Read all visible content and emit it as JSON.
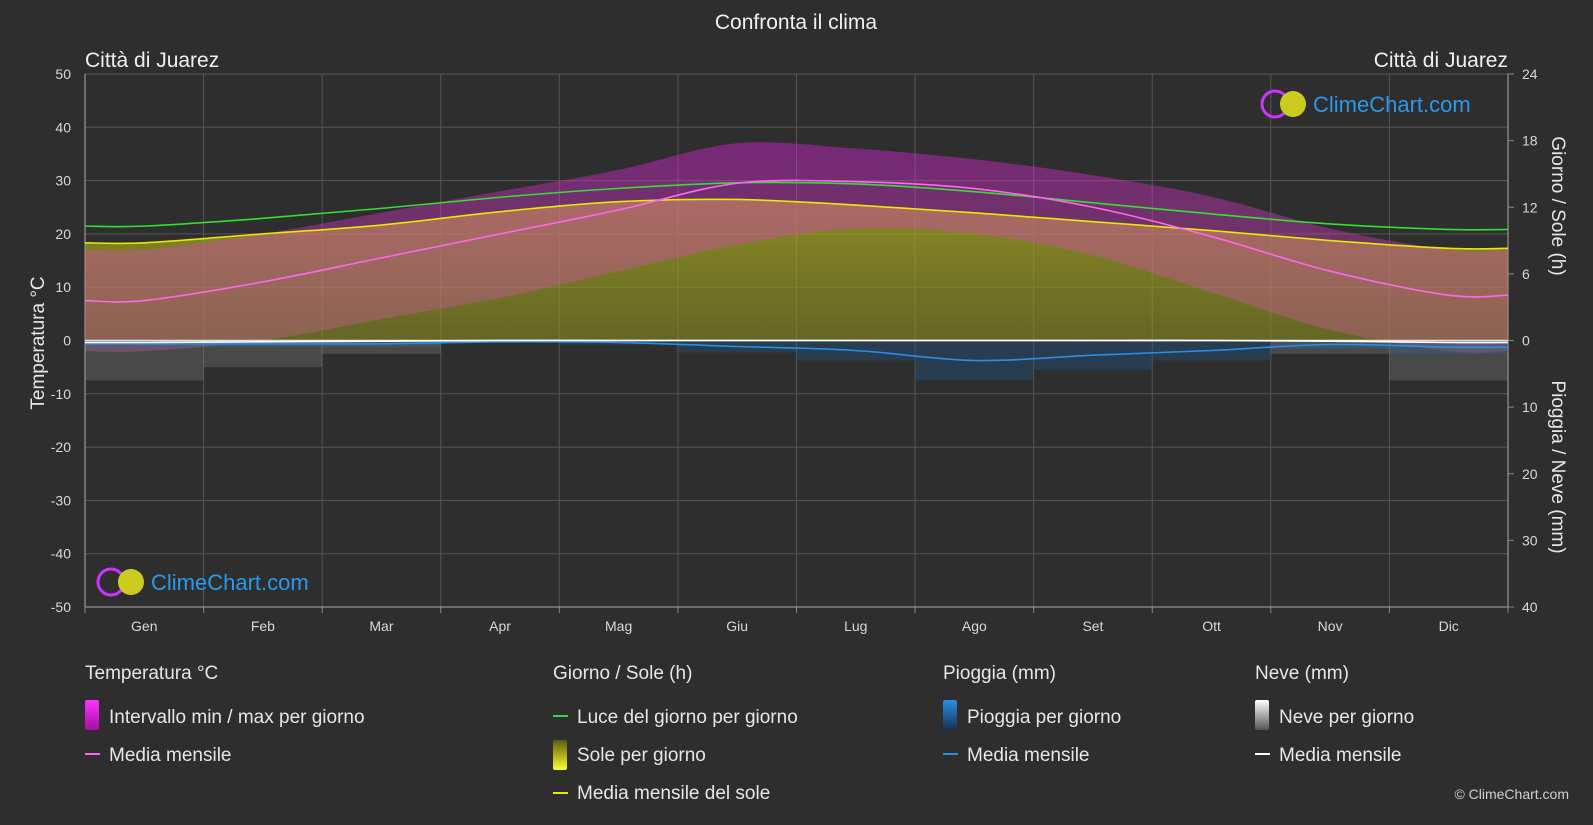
{
  "chart_data": {
    "type": "area",
    "title": "Confronta il clima",
    "location_left": "Città di Juarez",
    "location_right": "Città di Juarez",
    "ylabel_left": "Temperatura °C",
    "ylabel_right_top": "Giorno / Sole (h)",
    "ylabel_right_bottom": "Pioggia / Neve (mm)",
    "ylim_left": [
      -50,
      50
    ],
    "ylim_sun_hours": [
      0,
      24
    ],
    "ylim_precip_mm": [
      0,
      40
    ],
    "left_ticks": [
      "50",
      "40",
      "30",
      "20",
      "10",
      "0",
      "-10",
      "-20",
      "-30",
      "-40",
      "-50"
    ],
    "right_ticks_hours": [
      "24",
      "18",
      "12",
      "6",
      "0"
    ],
    "right_ticks_mm": [
      "10",
      "20",
      "30",
      "40"
    ],
    "grid": true,
    "categories": [
      "Gen",
      "Feb",
      "Mar",
      "Apr",
      "Mag",
      "Giu",
      "Lug",
      "Ago",
      "Set",
      "Ott",
      "Nov",
      "Dic"
    ],
    "series": [
      {
        "name": "Luce del giorno per giorno",
        "unit": "h",
        "color": "#33dd33",
        "values": [
          10.3,
          11.0,
          11.9,
          12.9,
          13.7,
          14.2,
          14.1,
          13.4,
          12.4,
          11.4,
          10.5,
          10.0
        ]
      },
      {
        "name": "Media mensile del sole",
        "unit": "h",
        "color": "#e8e800",
        "values": [
          8.8,
          9.6,
          10.4,
          11.6,
          12.5,
          12.7,
          12.2,
          11.5,
          10.7,
          9.9,
          9.0,
          8.3
        ]
      },
      {
        "name": "Media mensile",
        "group": "Temperatura °C",
        "unit": "°C",
        "color": "#ff66ee",
        "values": [
          7.5,
          11.0,
          15.5,
          20.0,
          24.5,
          29.5,
          29.8,
          28.5,
          25.0,
          19.5,
          13.0,
          8.5
        ]
      },
      {
        "name": "Intervallo min / max per giorno",
        "unit": "°C",
        "color": "#dd22dd",
        "min": [
          -2,
          0,
          4,
          8,
          13,
          18,
          21,
          20,
          16,
          9,
          2,
          -2
        ],
        "max": [
          17,
          20,
          24,
          28,
          32,
          37,
          36,
          34,
          31,
          27,
          21,
          17
        ]
      },
      {
        "name": "Sole per giorno",
        "unit": "h",
        "color": "#c8c820",
        "values": [
          8.8,
          9.6,
          10.4,
          11.6,
          12.5,
          12.7,
          12.2,
          11.5,
          10.7,
          9.9,
          9.0,
          8.3
        ]
      },
      {
        "name": "Media mensile",
        "group": "Pioggia (mm)",
        "unit": "mm",
        "color": "#2a8ee8",
        "values": [
          0.5,
          0.5,
          0.5,
          0.2,
          0.3,
          0.9,
          1.5,
          3.0,
          2.2,
          1.5,
          0.6,
          1.0
        ]
      },
      {
        "name": "Media mensile",
        "group": "Neve (mm)",
        "unit": "mm",
        "color": "#ffffff",
        "values": [
          0.3,
          0.2,
          0.1,
          0,
          0,
          0,
          0,
          0,
          0,
          0,
          0.1,
          0.3
        ]
      }
    ]
  },
  "legend": {
    "temp": {
      "header": "Temperatura °C",
      "items": [
        "Intervallo min / max per giorno",
        "Media mensile"
      ]
    },
    "sun": {
      "header": "Giorno / Sole (h)",
      "items": [
        "Luce del giorno per giorno",
        "Sole per giorno",
        "Media mensile del sole"
      ]
    },
    "rain": {
      "header": "Pioggia (mm)",
      "items": [
        "Pioggia per giorno",
        "Media mensile"
      ]
    },
    "snow": {
      "header": "Neve (mm)",
      "items": [
        "Neve per giorno",
        "Media mensile"
      ]
    }
  },
  "watermark": "ClimeChart.com",
  "copyright": "© ClimeChart.com"
}
